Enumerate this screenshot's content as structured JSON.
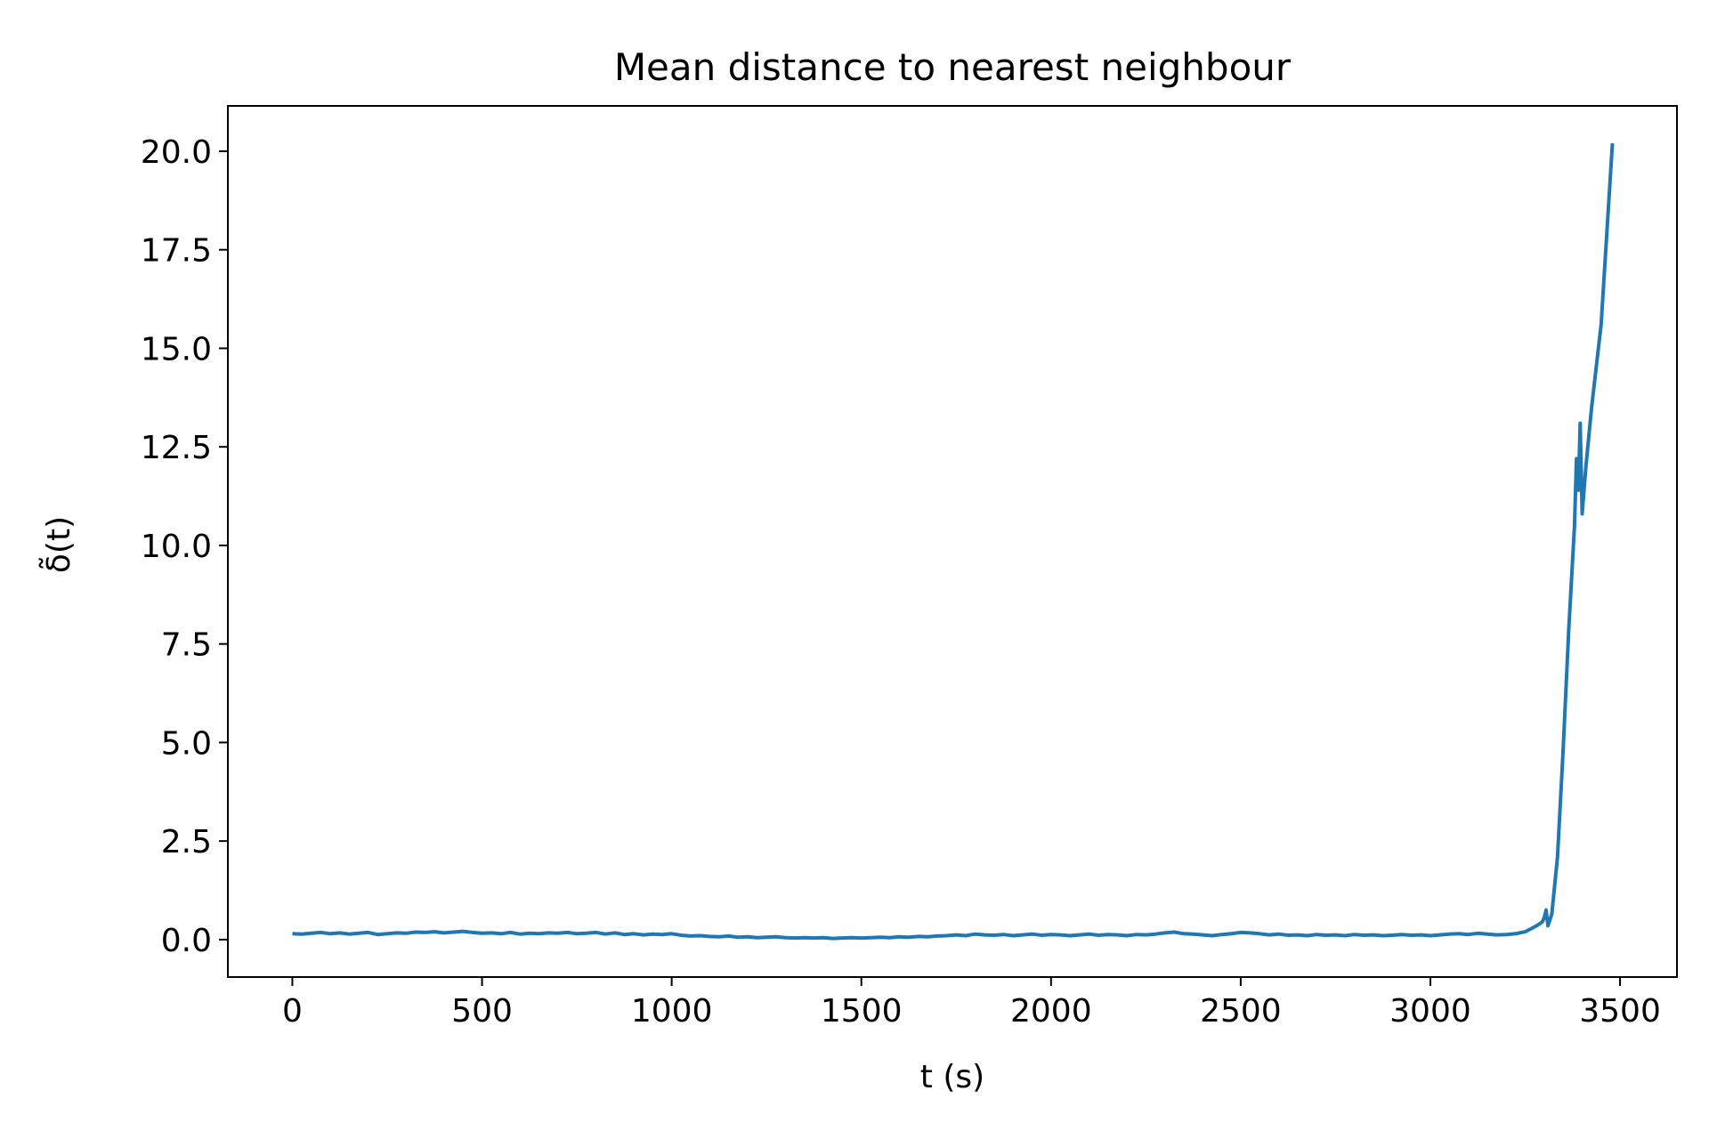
{
  "chart_data": {
    "type": "line",
    "title": "Mean distance to nearest neighbour",
    "xlabel": "t (s)",
    "ylabel": "δ̃(t)",
    "xlim": [
      -170,
      3650
    ],
    "ylim": [
      -0.95,
      21.15
    ],
    "xticks": [
      0,
      500,
      1000,
      1500,
      2000,
      2500,
      3000,
      3500
    ],
    "xtick_labels": [
      "0",
      "500",
      "1000",
      "1500",
      "2000",
      "2500",
      "3000",
      "3500"
    ],
    "yticks": [
      0,
      2.5,
      5,
      7.5,
      10,
      12.5,
      15,
      17.5,
      20
    ],
    "ytick_labels": [
      "0.0",
      "2.5",
      "5.0",
      "7.5",
      "10.0",
      "12.5",
      "15.0",
      "17.5",
      "20.0"
    ],
    "grid": false,
    "line_color": "#1f77b4",
    "series": [
      {
        "x": [
          0,
          25,
          50,
          75,
          100,
          125,
          150,
          175,
          200,
          225,
          250,
          275,
          300,
          325,
          350,
          375,
          400,
          425,
          450,
          475,
          500,
          525,
          550,
          575,
          600,
          625,
          650,
          675,
          700,
          725,
          750,
          775,
          800,
          825,
          850,
          875,
          900,
          925,
          950,
          975,
          1000,
          1025,
          1050,
          1075,
          1100,
          1125,
          1150,
          1175,
          1200,
          1225,
          1250,
          1275,
          1300,
          1325,
          1350,
          1375,
          1400,
          1425,
          1450,
          1475,
          1500,
          1525,
          1550,
          1575,
          1600,
          1625,
          1650,
          1675,
          1700,
          1725,
          1750,
          1775,
          1800,
          1825,
          1850,
          1875,
          1900,
          1925,
          1950,
          1975,
          2000,
          2025,
          2050,
          2075,
          2100,
          2125,
          2150,
          2175,
          2200,
          2225,
          2250,
          2275,
          2300,
          2325,
          2350,
          2375,
          2400,
          2425,
          2450,
          2475,
          2500,
          2525,
          2550,
          2575,
          2600,
          2625,
          2650,
          2675,
          2700,
          2725,
          2750,
          2775,
          2800,
          2825,
          2850,
          2875,
          2900,
          2925,
          2950,
          2975,
          3000,
          3025,
          3050,
          3075,
          3100,
          3125,
          3150,
          3175,
          3200,
          3225,
          3250,
          3270,
          3285,
          3295,
          3300,
          3305,
          3310,
          3320,
          3335,
          3350,
          3365,
          3380,
          3385,
          3390,
          3395,
          3400,
          3410,
          3425,
          3450,
          3480
        ],
        "y": [
          0.15,
          0.14,
          0.16,
          0.18,
          0.15,
          0.17,
          0.14,
          0.16,
          0.18,
          0.13,
          0.15,
          0.17,
          0.16,
          0.19,
          0.18,
          0.2,
          0.17,
          0.19,
          0.21,
          0.18,
          0.16,
          0.17,
          0.15,
          0.18,
          0.14,
          0.16,
          0.15,
          0.17,
          0.16,
          0.18,
          0.15,
          0.16,
          0.18,
          0.14,
          0.17,
          0.13,
          0.15,
          0.12,
          0.14,
          0.13,
          0.15,
          0.11,
          0.09,
          0.1,
          0.08,
          0.07,
          0.09,
          0.06,
          0.07,
          0.05,
          0.06,
          0.07,
          0.05,
          0.04,
          0.05,
          0.04,
          0.05,
          0.03,
          0.04,
          0.05,
          0.04,
          0.05,
          0.06,
          0.05,
          0.07,
          0.06,
          0.08,
          0.07,
          0.09,
          0.1,
          0.12,
          0.1,
          0.14,
          0.12,
          0.11,
          0.13,
          0.1,
          0.12,
          0.14,
          0.11,
          0.13,
          0.12,
          0.1,
          0.12,
          0.14,
          0.11,
          0.13,
          0.12,
          0.1,
          0.13,
          0.12,
          0.14,
          0.17,
          0.19,
          0.15,
          0.14,
          0.12,
          0.1,
          0.13,
          0.15,
          0.18,
          0.17,
          0.15,
          0.12,
          0.14,
          0.11,
          0.12,
          0.1,
          0.13,
          0.11,
          0.12,
          0.1,
          0.13,
          0.11,
          0.12,
          0.1,
          0.11,
          0.13,
          0.11,
          0.12,
          0.1,
          0.12,
          0.14,
          0.15,
          0.13,
          0.16,
          0.14,
          0.12,
          0.13,
          0.15,
          0.2,
          0.3,
          0.38,
          0.45,
          0.55,
          0.75,
          0.35,
          0.65,
          2.1,
          4.8,
          7.9,
          10.5,
          12.2,
          11.4,
          13.1,
          10.8,
          12.0,
          13.5,
          15.6,
          20.2
        ]
      }
    ]
  }
}
